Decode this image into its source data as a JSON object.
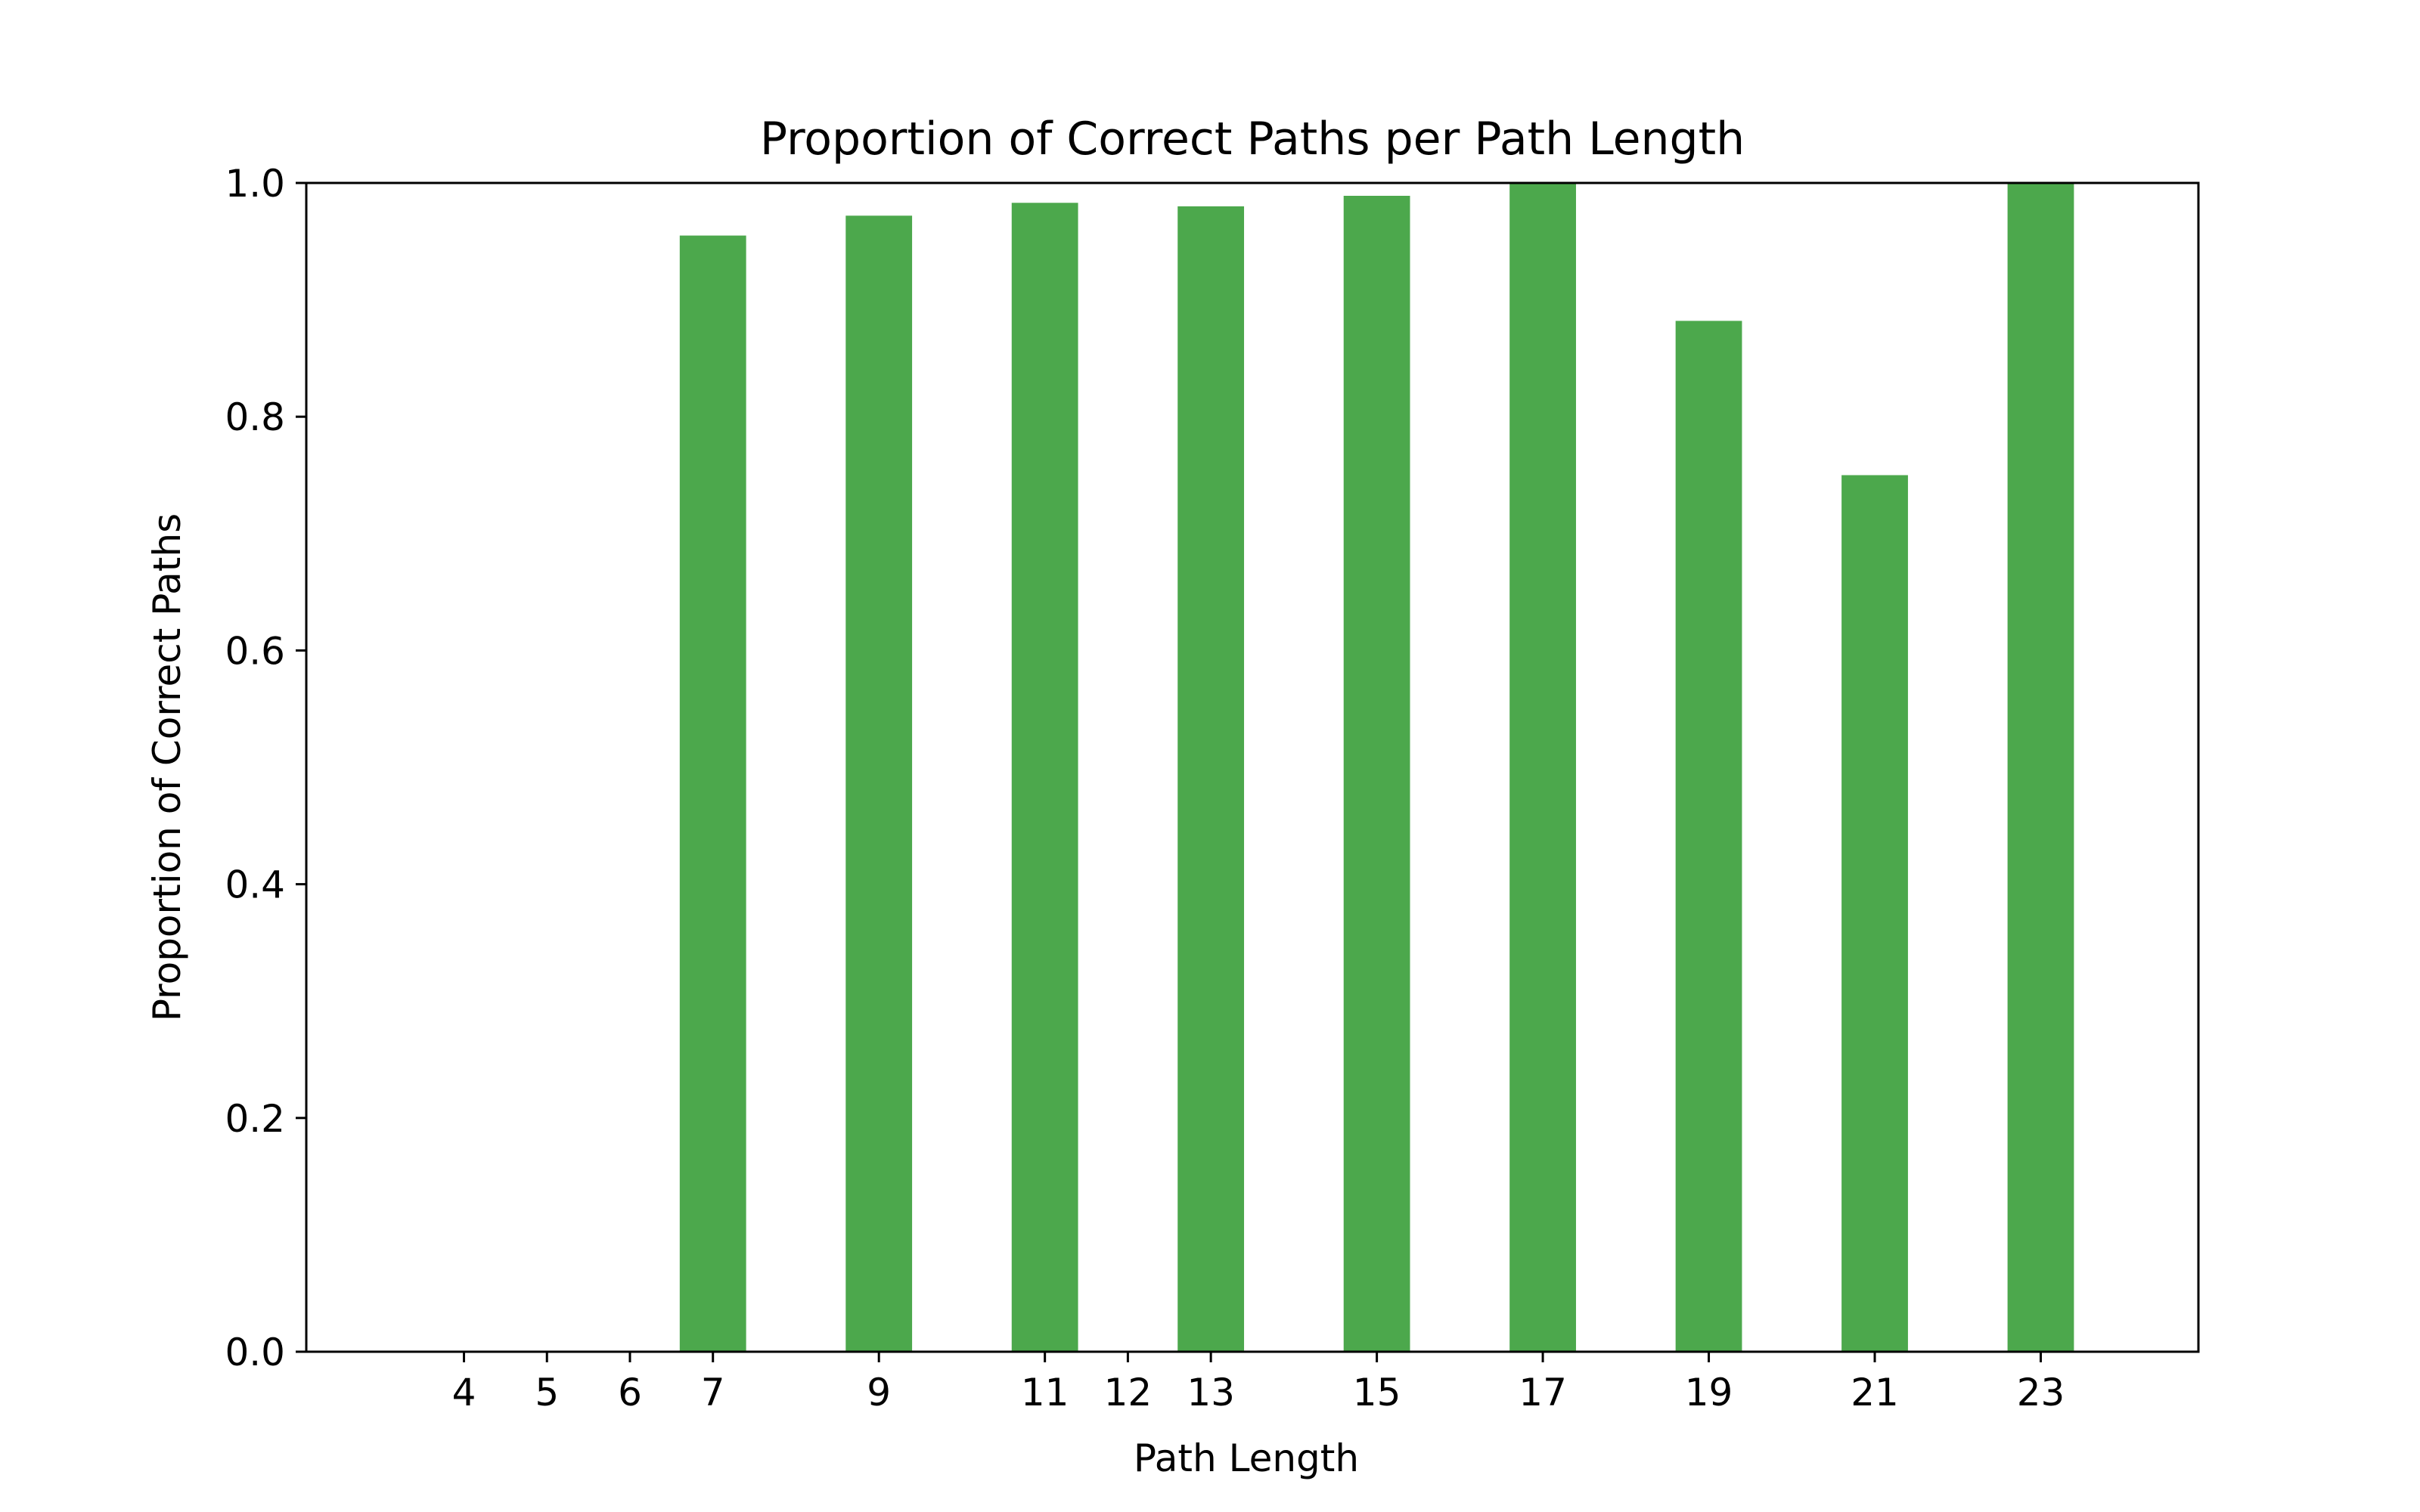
{
  "chart_data": {
    "type": "bar",
    "title": "Proportion of Correct Paths per Path Length",
    "xlabel": "Path Length",
    "ylabel": "Proportion of Correct Paths",
    "x": [
      7,
      9,
      11,
      13,
      15,
      17,
      19,
      21,
      23
    ],
    "values": [
      0.955,
      0.972,
      0.983,
      0.98,
      0.989,
      1.0,
      0.882,
      0.75,
      1.0
    ],
    "xticks": [
      4,
      5,
      6,
      7,
      9,
      11,
      12,
      13,
      15,
      17,
      19,
      21,
      23
    ],
    "xlim": [
      2.1,
      24.9
    ],
    "ylim": [
      0,
      1
    ],
    "yticks": [
      "0.0",
      "0.2",
      "0.4",
      "0.6",
      "0.8",
      "1.0"
    ],
    "bar_width": 0.8,
    "bar_color": "#4ca84c",
    "grid": false,
    "legend": "none"
  }
}
